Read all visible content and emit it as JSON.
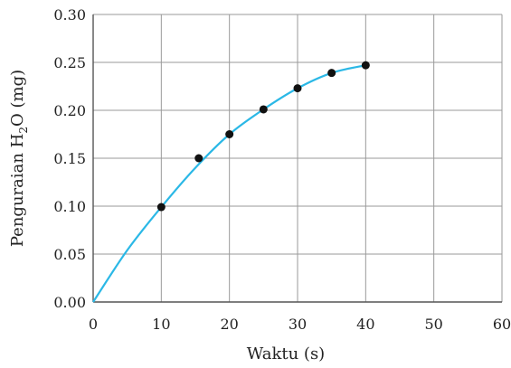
{
  "chart_data": {
    "type": "scatter",
    "title": "",
    "xlabel": "Waktu (s)",
    "ylabel": {
      "before_sub": "Penguraian H",
      "subscript": "2",
      "after_sub": "O (mg)"
    },
    "xlim": [
      0,
      60
    ],
    "ylim": [
      0,
      0.3
    ],
    "grid": true,
    "x_ticks": [
      "0",
      "10",
      "20",
      "30",
      "40",
      "50",
      "60"
    ],
    "y_ticks": [
      "0.00",
      "0.05",
      "0.10",
      "0.15",
      "0.20",
      "0.25",
      "0.30"
    ],
    "points": [
      {
        "x": 10,
        "y": 0.099
      },
      {
        "x": 15.5,
        "y": 0.15
      },
      {
        "x": 20,
        "y": 0.175
      },
      {
        "x": 25,
        "y": 0.201
      },
      {
        "x": 30,
        "y": 0.223
      },
      {
        "x": 35,
        "y": 0.239
      },
      {
        "x": 40,
        "y": 0.247
      }
    ],
    "fit_curve": {
      "x": [
        0,
        5,
        10,
        15,
        20,
        25,
        30,
        35,
        40
      ],
      "y": [
        0,
        0.054,
        0.099,
        0.14,
        0.175,
        0.201,
        0.223,
        0.239,
        0.247
      ]
    },
    "colors": {
      "curve": "#2bb8e6",
      "points": "#111111",
      "grid": "#9a9a9a",
      "axis": "#555555"
    }
  }
}
